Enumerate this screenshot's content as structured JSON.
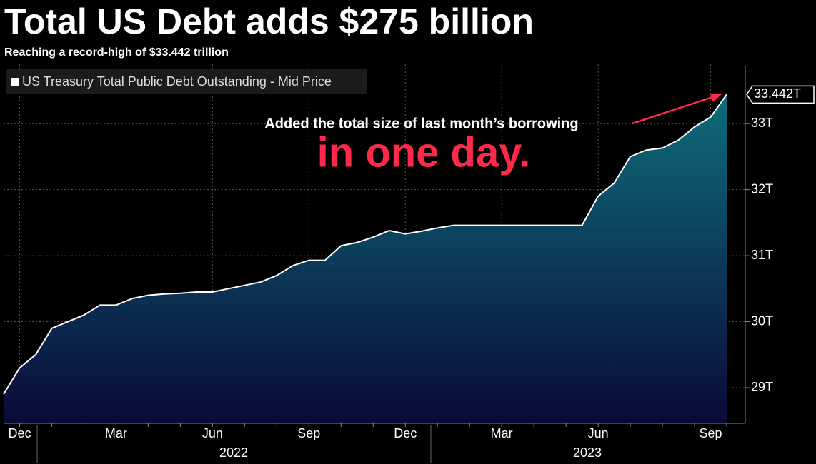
{
  "chart_data": {
    "type": "area",
    "title": "Total US Debt adds $275 billion",
    "subtitle": "Reaching a record-high of $33.442 trillion",
    "annotations": [
      "Added the total size of last month’s borrowing",
      "in one day."
    ],
    "categories": [
      null,
      "Dec",
      null,
      null,
      null,
      null,
      null,
      "Mar",
      null,
      null,
      null,
      null,
      null,
      "Jun",
      null,
      null,
      null,
      null,
      null,
      "Sep",
      null,
      null,
      null,
      null,
      null,
      "Dec",
      null,
      null,
      null,
      null,
      null,
      "Mar",
      null,
      null,
      null,
      null,
      null,
      "Jun",
      null,
      null,
      null,
      null,
      null,
      null,
      "Sep",
      null
    ],
    "year_labels": [
      "2022",
      "2023"
    ],
    "series": [
      {
        "name": "US Treasury Total Public Debt Outstanding - Mid Price",
        "color": "#ffffff",
        "values": [
          28.9,
          29.3,
          29.5,
          29.9,
          30.0,
          30.1,
          30.25,
          30.25,
          30.35,
          30.4,
          30.42,
          30.43,
          30.45,
          30.45,
          30.5,
          30.55,
          30.6,
          30.7,
          30.85,
          30.93,
          30.93,
          31.15,
          31.2,
          31.28,
          31.38,
          31.33,
          31.37,
          31.42,
          31.46,
          31.46,
          31.46,
          31.46,
          31.46,
          31.46,
          31.46,
          31.46,
          31.46,
          31.9,
          32.1,
          32.5,
          32.6,
          32.63,
          32.75,
          32.95,
          33.1,
          33.442
        ],
        "value_labels": [
          null,
          null,
          null,
          null,
          null,
          null,
          null,
          null,
          null,
          null,
          null,
          null,
          null,
          null,
          null,
          null,
          null,
          null,
          null,
          null,
          null,
          null,
          null,
          null,
          null,
          null,
          null,
          null,
          null,
          null,
          null,
          null,
          null,
          null,
          null,
          null,
          null,
          null,
          null,
          null,
          null,
          null,
          null,
          null,
          null,
          "33.442T"
        ]
      }
    ],
    "ylim": [
      28.47,
      33.9
    ],
    "yticks": [
      {
        "value": 29,
        "label": "29T"
      },
      {
        "value": 30,
        "label": "30T"
      },
      {
        "value": 31,
        "label": "31T"
      },
      {
        "value": 32,
        "label": "32T"
      },
      {
        "value": 33,
        "label": "33T"
      }
    ],
    "grid": true,
    "fill_top": "#0e6d7a",
    "fill_bottom": "#0a0a38",
    "annotation_color": "#ff2a4a"
  }
}
